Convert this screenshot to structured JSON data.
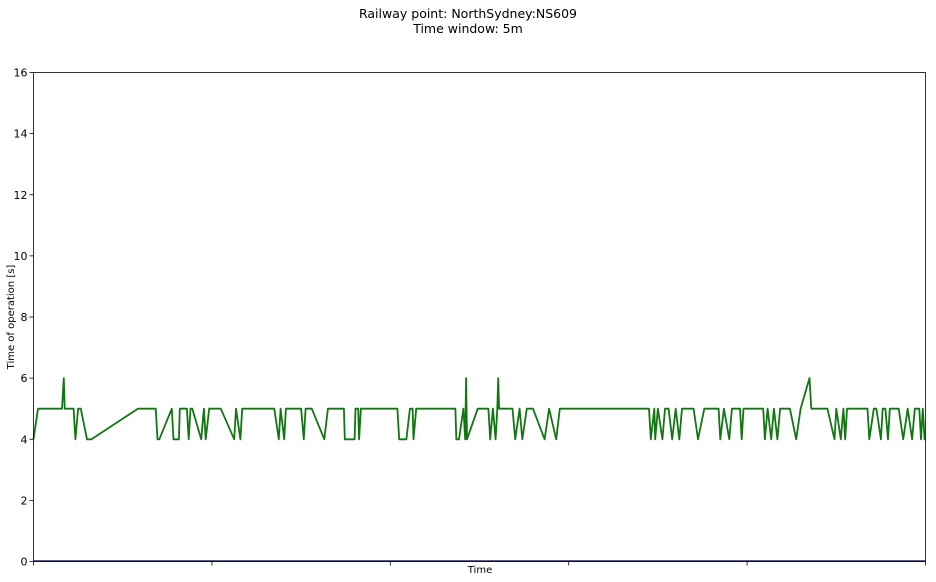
{
  "chart_data": {
    "type": "line",
    "title": "Railway point: NorthSydney:NS609",
    "subtitle": "Time window: 5m",
    "xlabel": "Time",
    "ylabel": "Time of operation [s]",
    "ylim": [
      0,
      16
    ],
    "yticks": [
      "0",
      "2",
      "4",
      "6",
      "8",
      "10",
      "12",
      "14",
      "16"
    ],
    "xlim": [
      0,
      1000
    ],
    "grid": false,
    "colors": {
      "series": "#117711",
      "baseline": "#1a237e"
    },
    "series": [
      {
        "values": [
          [
            0,
            4
          ],
          [
            5,
            5
          ],
          [
            32,
            5
          ],
          [
            34,
            6
          ],
          [
            35,
            5
          ],
          [
            45,
            5
          ],
          [
            47,
            4
          ],
          [
            50,
            5
          ],
          [
            53,
            5
          ],
          [
            60,
            4
          ],
          [
            65,
            4
          ],
          [
            117,
            5
          ],
          [
            137,
            5
          ],
          [
            139,
            4
          ],
          [
            141,
            4
          ],
          [
            155,
            5
          ],
          [
            157,
            4
          ],
          [
            163,
            4
          ],
          [
            164,
            5
          ],
          [
            172,
            5
          ],
          [
            174,
            4
          ],
          [
            176,
            5
          ],
          [
            178,
            5
          ],
          [
            188,
            4
          ],
          [
            191,
            5
          ],
          [
            193,
            4
          ],
          [
            197,
            5
          ],
          [
            200,
            5
          ],
          [
            210,
            5
          ],
          [
            225,
            4
          ],
          [
            227,
            5
          ],
          [
            232,
            4
          ],
          [
            234,
            5
          ],
          [
            243,
            5
          ],
          [
            252,
            5
          ],
          [
            262,
            5
          ],
          [
            270,
            5
          ],
          [
            275,
            4
          ],
          [
            277,
            5
          ],
          [
            281,
            4
          ],
          [
            283,
            5
          ],
          [
            300,
            5
          ],
          [
            303,
            4
          ],
          [
            305,
            5
          ],
          [
            312,
            5
          ],
          [
            326,
            4
          ],
          [
            330,
            5
          ],
          [
            336,
            5
          ],
          [
            340,
            5
          ],
          [
            348,
            5
          ],
          [
            349,
            4
          ],
          [
            354,
            4
          ],
          [
            360,
            4
          ],
          [
            361,
            5
          ],
          [
            364,
            5
          ],
          [
            365,
            4
          ],
          [
            367,
            5
          ],
          [
            369,
            5
          ],
          [
            372,
            5
          ],
          [
            390,
            5
          ],
          [
            408,
            5
          ],
          [
            410,
            4
          ],
          [
            413,
            4
          ],
          [
            418,
            4
          ],
          [
            422,
            5
          ],
          [
            425,
            5
          ],
          [
            426,
            4
          ],
          [
            429,
            5
          ],
          [
            451,
            5
          ],
          [
            473,
            5
          ],
          [
            474,
            4
          ],
          [
            477,
            4
          ],
          [
            482,
            5
          ],
          [
            484,
            4
          ],
          [
            485,
            6
          ],
          [
            486,
            4
          ],
          [
            498,
            5
          ],
          [
            510,
            5
          ],
          [
            512,
            4
          ],
          [
            515,
            5
          ],
          [
            518,
            4
          ],
          [
            520,
            5
          ],
          [
            521,
            6
          ],
          [
            522,
            5
          ],
          [
            537,
            5
          ],
          [
            540,
            4
          ],
          [
            545,
            5
          ],
          [
            548,
            4
          ],
          [
            553,
            5
          ],
          [
            560,
            5
          ],
          [
            573,
            4
          ],
          [
            578,
            5
          ],
          [
            586,
            4
          ],
          [
            590,
            5
          ],
          [
            640,
            5
          ],
          [
            675,
            5
          ],
          [
            690,
            5
          ],
          [
            692,
            4
          ],
          [
            696,
            5
          ],
          [
            697,
            4
          ],
          [
            700,
            5
          ],
          [
            705,
            4
          ],
          [
            708,
            5
          ],
          [
            712,
            5
          ],
          [
            716,
            4
          ],
          [
            720,
            5
          ],
          [
            724,
            4
          ],
          [
            727,
            5
          ],
          [
            740,
            5
          ],
          [
            745,
            4
          ],
          [
            752,
            5
          ],
          [
            760,
            5
          ],
          [
            764,
            5
          ],
          [
            768,
            5
          ],
          [
            770,
            4
          ],
          [
            774,
            5
          ],
          [
            780,
            4
          ],
          [
            783,
            5
          ],
          [
            787,
            5
          ],
          [
            792,
            5
          ],
          [
            794,
            4
          ],
          [
            796,
            5
          ],
          [
            802,
            5
          ],
          [
            810,
            5
          ],
          [
            818,
            5
          ],
          [
            820,
            4
          ],
          [
            823,
            5
          ],
          [
            827,
            4
          ],
          [
            830,
            5
          ],
          [
            834,
            4
          ],
          [
            837,
            5
          ],
          [
            848,
            5
          ],
          [
            855,
            4
          ],
          [
            860,
            5
          ],
          [
            870,
            6
          ],
          [
            872,
            5
          ],
          [
            880,
            5
          ],
          [
            890,
            5
          ],
          [
            898,
            4
          ],
          [
            900,
            5
          ],
          [
            905,
            4
          ],
          [
            908,
            5
          ],
          [
            910,
            4
          ],
          [
            912,
            5
          ],
          [
            918,
            5
          ],
          [
            930,
            5
          ],
          [
            935,
            5
          ],
          [
            937,
            4
          ],
          [
            942,
            5
          ],
          [
            945,
            5
          ],
          [
            950,
            4
          ],
          [
            952,
            5
          ],
          [
            955,
            5
          ],
          [
            958,
            4
          ],
          [
            960,
            5
          ],
          [
            965,
            5
          ],
          [
            970,
            5
          ],
          [
            975,
            4
          ],
          [
            980,
            5
          ],
          [
            985,
            4
          ],
          [
            988,
            5
          ],
          [
            993,
            5
          ],
          [
            995,
            4
          ],
          [
            997,
            5
          ],
          [
            999,
            4
          ],
          [
            1000,
            4
          ]
        ]
      }
    ]
  }
}
